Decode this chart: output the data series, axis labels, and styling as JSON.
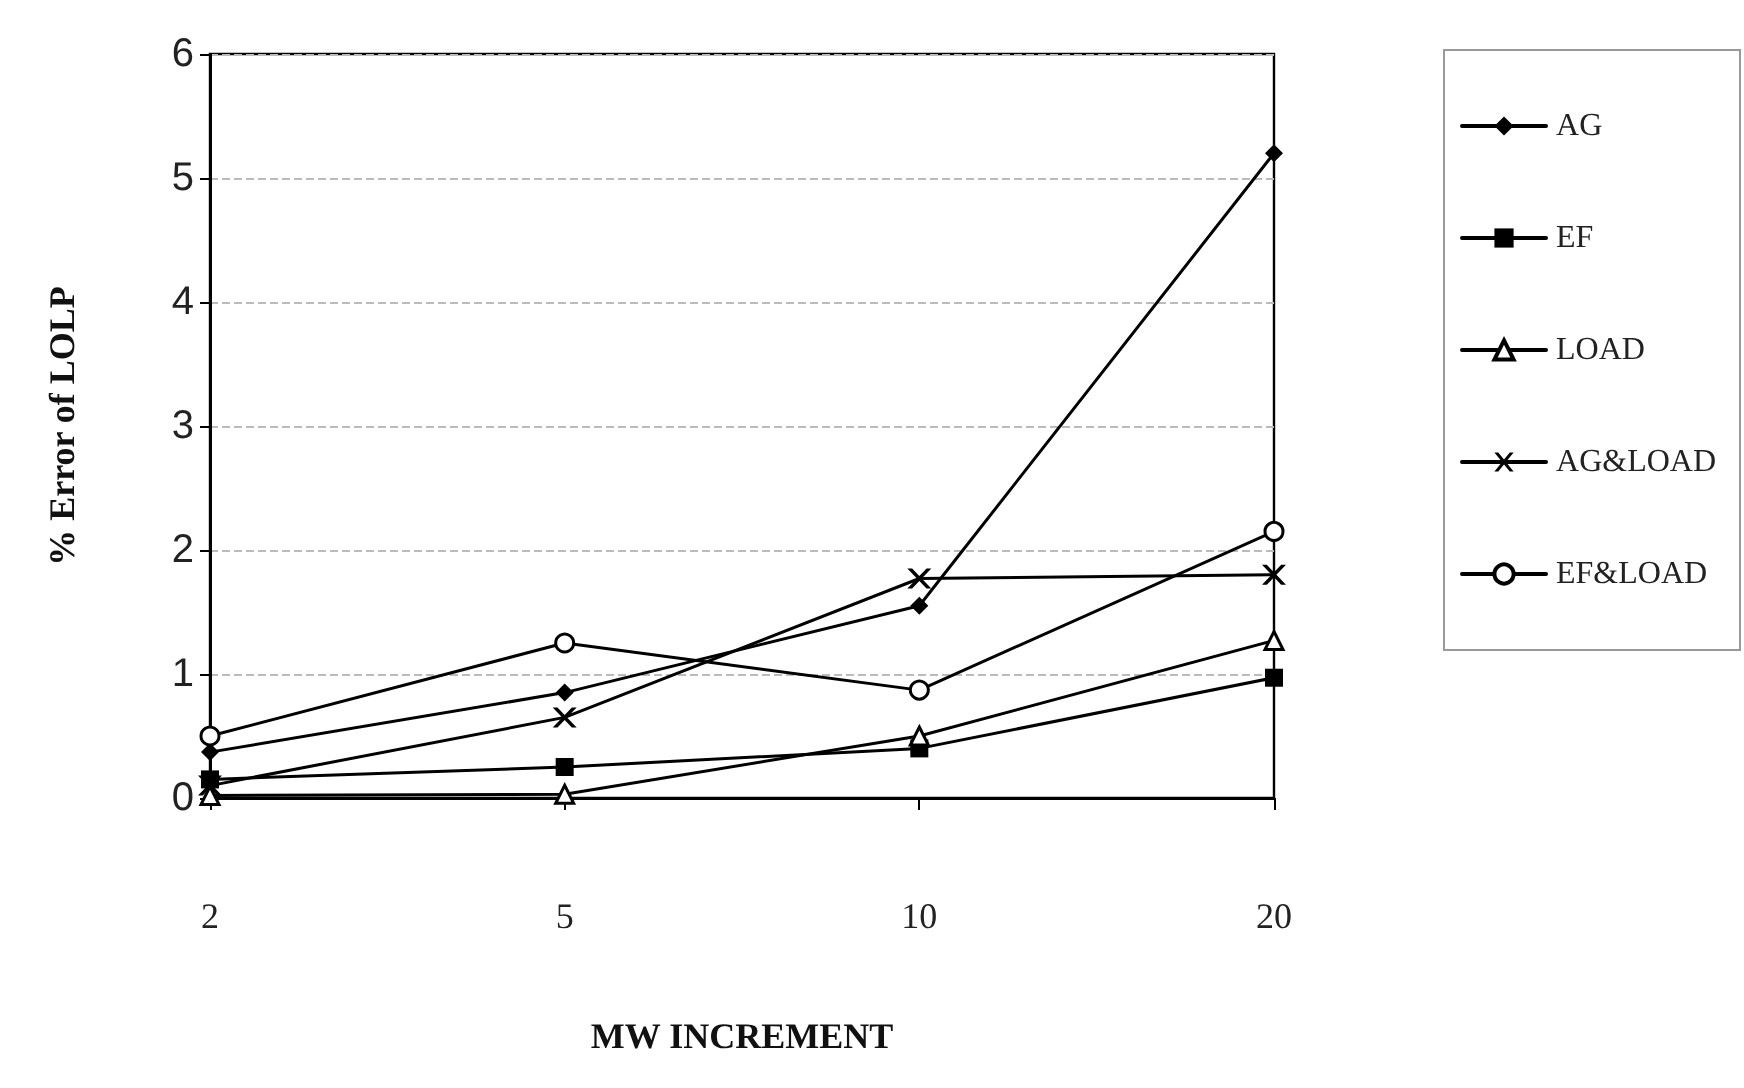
{
  "chart_data": {
    "type": "line",
    "xlabel": "MW INCREMENT",
    "ylabel": "% Error of LOLP",
    "categories": [
      "2",
      "5",
      "10",
      "20"
    ],
    "ylim": [
      0,
      6
    ],
    "yticks": [
      0,
      1,
      2,
      3,
      4,
      5,
      6
    ],
    "grid": "y",
    "legend": "right",
    "line_style": "solid",
    "series": [
      {
        "name": "AG",
        "color": "#000000",
        "marker": "diamond",
        "values": [
          0.37,
          0.85,
          1.55,
          5.2
        ]
      },
      {
        "name": "EF",
        "color": "#000000",
        "marker": "square",
        "values": [
          0.15,
          0.25,
          0.4,
          0.97
        ]
      },
      {
        "name": "LOAD",
        "color": "#000000",
        "marker": "triangle",
        "values": [
          0.02,
          0.03,
          0.5,
          1.27
        ]
      },
      {
        "name": "AG&LOAD",
        "color": "#000000",
        "marker": "cross",
        "values": [
          0.1,
          0.65,
          1.77,
          1.8
        ]
      },
      {
        "name": "EF&LOAD",
        "color": "#000000",
        "marker": "circle",
        "values": [
          0.5,
          1.25,
          0.87,
          2.15
        ]
      }
    ]
  }
}
